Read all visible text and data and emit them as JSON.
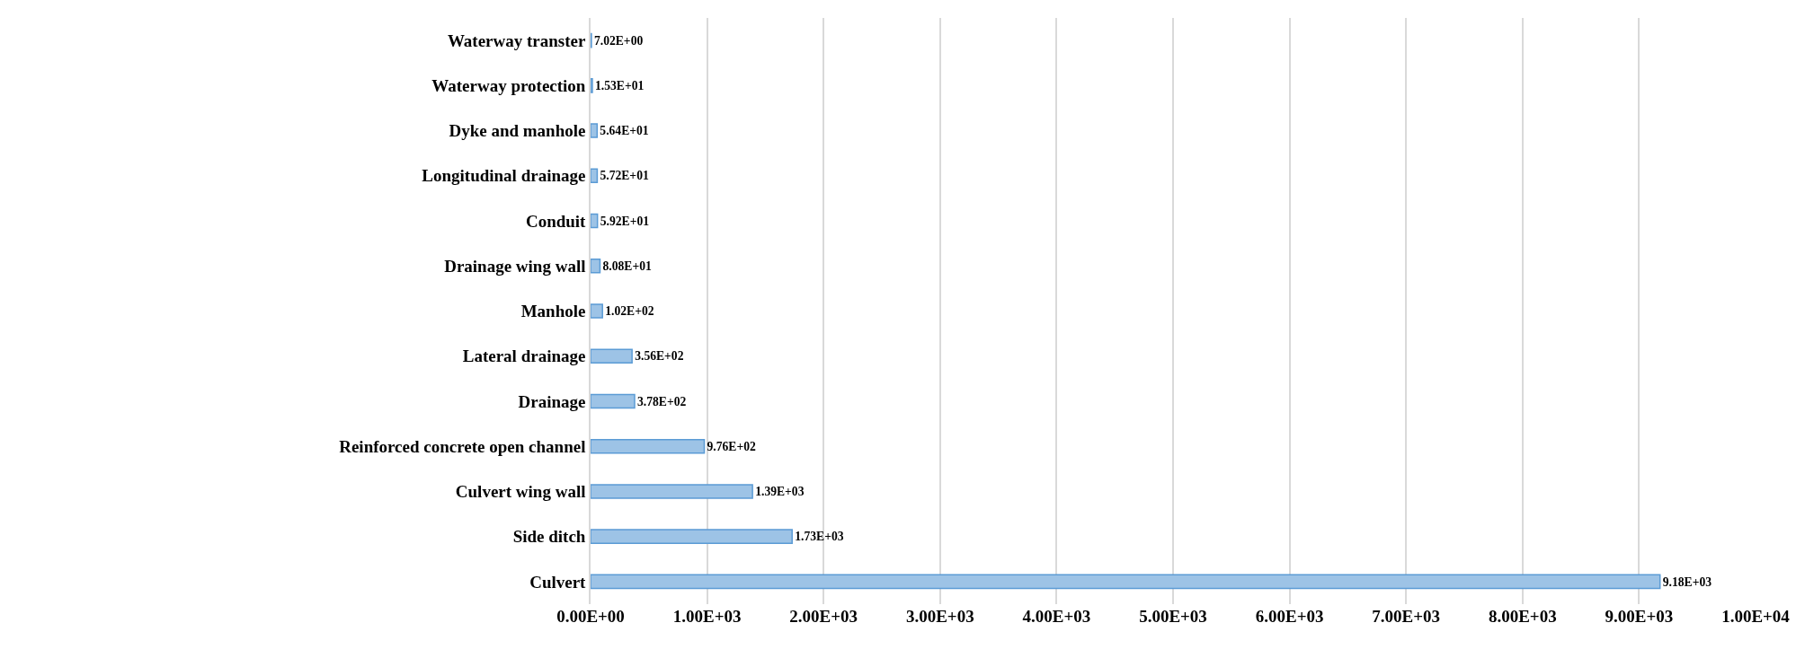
{
  "chart_data": {
    "type": "bar",
    "orientation": "horizontal",
    "categories": [
      "Waterway transter",
      "Waterway protection",
      "Dyke and manhole",
      "Longitudinal drainage",
      "Conduit",
      "Drainage wing wall",
      "Manhole",
      "Lateral drainage",
      "Drainage",
      "Reinforced concrete open channel",
      "Culvert wing wall",
      "Side ditch",
      "Culvert"
    ],
    "values": [
      7.02,
      15.3,
      56.4,
      57.2,
      59.2,
      80.8,
      102,
      356,
      378,
      976,
      1390,
      1730,
      9180
    ],
    "value_labels": [
      "7.02E+00",
      "1.53E+01",
      "5.64E+01",
      "5.72E+01",
      "5.92E+01",
      "8.08E+01",
      "1.02E+02",
      "3.56E+02",
      "3.78E+02",
      "9.76E+02",
      "1.39E+03",
      "1.73E+03",
      "9.18E+03"
    ],
    "color": "#9dc3e6",
    "xlim": [
      0,
      10000
    ],
    "xticks": [
      {
        "value": 0,
        "label": "0.00E+00"
      },
      {
        "value": 1000,
        "label": "1.00E+03"
      },
      {
        "value": 2000,
        "label": "2.00E+03"
      },
      {
        "value": 3000,
        "label": "3.00E+03"
      },
      {
        "value": 4000,
        "label": "4.00E+03"
      },
      {
        "value": 5000,
        "label": "5.00E+03"
      },
      {
        "value": 6000,
        "label": "6.00E+03"
      },
      {
        "value": 7000,
        "label": "7.00E+03"
      },
      {
        "value": 8000,
        "label": "8.00E+03"
      },
      {
        "value": 9000,
        "label": "9.00E+03"
      },
      {
        "value": 10000,
        "label": "1.00E+04"
      }
    ],
    "grid": "x"
  }
}
